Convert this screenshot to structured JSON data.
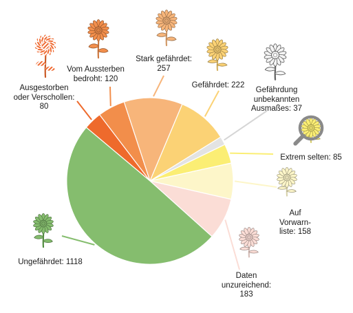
{
  "chart_data": {
    "type": "pie",
    "start_angle_deg": -140,
    "direction": "clockwise",
    "slices": [
      {
        "label_lines": [
          "Ausgestorben",
          "oder Verschollen:",
          "80"
        ],
        "category": "Ausgestorben oder Verschollen",
        "value": 80,
        "color": "#ee6a2c",
        "icon": "striped-flower-icon"
      },
      {
        "label_lines": [
          "Vom Aussterben",
          "bedroht: 120"
        ],
        "category": "Vom Aussterben bedroht",
        "value": 120,
        "color": "#f28e4b",
        "icon": "orange-flower-icon"
      },
      {
        "label_lines": [
          "Stark gefährdet:",
          "257"
        ],
        "category": "Stark gefährdet",
        "value": 257,
        "color": "#f7b57a",
        "icon": "light-orange-flower-icon"
      },
      {
        "label_lines": [
          "Gefährdet: 222"
        ],
        "category": "Gefährdet",
        "value": 222,
        "color": "#fbd275",
        "icon": "yellow-orange-flower-icon"
      },
      {
        "label_lines": [
          "Gefährdung",
          "unbekannten",
          "Ausmaßes: 37"
        ],
        "category": "Gefährdung unbekannten Ausmaßes",
        "value": 37,
        "color": "#e3e3e3",
        "icon": "grey-flower-icon"
      },
      {
        "label_lines": [
          "Extrem selten: 85"
        ],
        "category": "Extrem selten",
        "value": 85,
        "color": "#fbee74",
        "icon": "magnifier-flower-icon"
      },
      {
        "label_lines": [
          "Auf",
          "Vorwarn-",
          "liste: 158"
        ],
        "category": "Auf Vorwarnliste",
        "value": 158,
        "color": "#fdf6c9",
        "icon": "pale-yellow-flower-icon"
      },
      {
        "label_lines": [
          "Daten",
          "unzureichend:",
          "183"
        ],
        "category": "Daten unzureichend",
        "value": 183,
        "color": "#fbddd6",
        "icon": "pink-flower-icon"
      },
      {
        "label_lines": [
          "Ungefährdet: 1118"
        ],
        "category": "Ungefährdet",
        "value": 1118,
        "color": "#85bd6e",
        "icon": "green-flower-icon"
      }
    ]
  }
}
